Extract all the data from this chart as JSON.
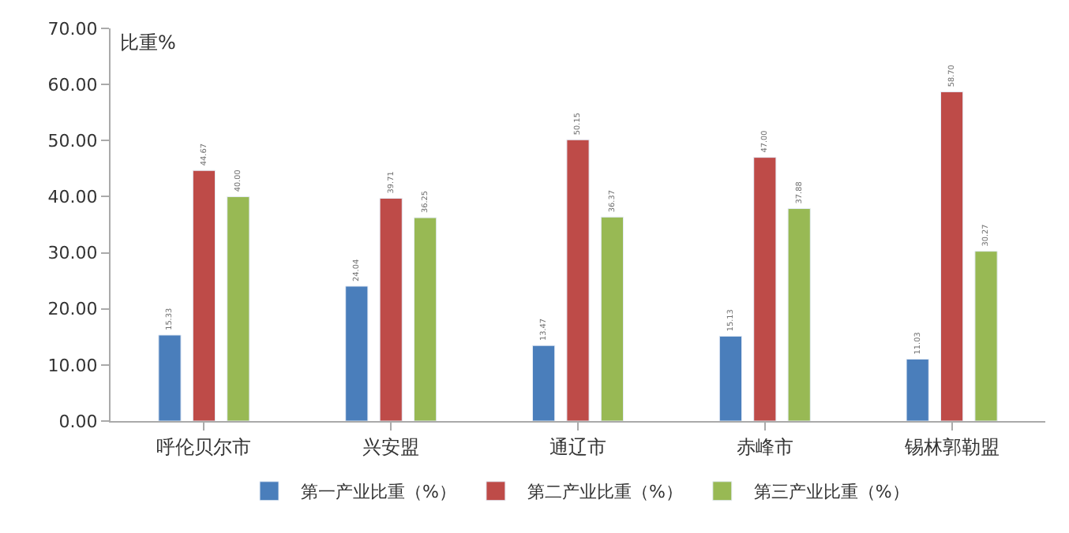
{
  "chart_data": {
    "type": "bar",
    "ylabel": "比重%",
    "categories": [
      "呼伦贝尔市",
      "兴安盟",
      "通辽市",
      "赤峰市",
      "锡林郭勒盟"
    ],
    "series": [
      {
        "name": "第一产业比重（%）",
        "color": "#4a7ebb",
        "values": [
          15.33,
          24.04,
          13.47,
          15.13,
          11.03
        ],
        "value_labels": [
          "15.33",
          "24.04",
          "13.47",
          "15.13",
          "11.03"
        ]
      },
      {
        "name": "第二产业比重（%）",
        "color": "#be4b48",
        "values": [
          44.67,
          39.71,
          50.15,
          47.0,
          58.7
        ],
        "value_labels": [
          "44.67",
          "39.71",
          "50.15",
          "47.00",
          "58.70"
        ]
      },
      {
        "name": "第三产业比重（%）",
        "color": "#98b954",
        "values": [
          40.0,
          36.25,
          36.37,
          37.88,
          30.27
        ],
        "value_labels": [
          "40.00",
          "36.25",
          "36.37",
          "37.88",
          "30.27"
        ]
      }
    ],
    "ylim": [
      0,
      70
    ],
    "yticks": [
      {
        "value": 0,
        "label": "0.00"
      },
      {
        "value": 10,
        "label": "10.00"
      },
      {
        "value": 20,
        "label": "20.00"
      },
      {
        "value": 30,
        "label": "30.00"
      },
      {
        "value": 40,
        "label": "40.00"
      },
      {
        "value": 50,
        "label": "50.00"
      },
      {
        "value": 60,
        "label": "60.00"
      },
      {
        "value": 70,
        "label": "70.00"
      }
    ],
    "grid": false,
    "legend": "bottom"
  }
}
